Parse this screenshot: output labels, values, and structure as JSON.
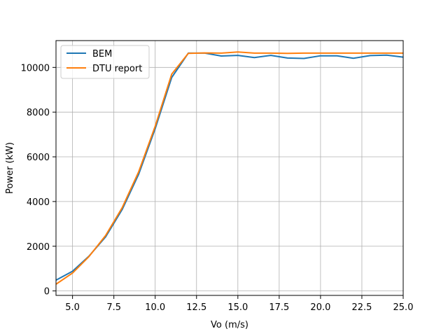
{
  "chart_data": {
    "type": "line",
    "title": "",
    "xlabel": "Vo (m/s)",
    "ylabel": "Power (kW)",
    "xlim": [
      4,
      25
    ],
    "ylim": [
      -200,
      11200
    ],
    "grid": true,
    "legend_position": "top-left",
    "x_ticks": [
      5.0,
      7.5,
      10.0,
      12.5,
      15.0,
      17.5,
      20.0,
      22.5,
      25.0
    ],
    "x_tick_labels": [
      "5.0",
      "7.5",
      "10.0",
      "12.5",
      "15.0",
      "17.5",
      "20.0",
      "22.5",
      "25.0"
    ],
    "y_ticks": [
      0,
      2000,
      4000,
      6000,
      8000,
      10000
    ],
    "y_tick_labels": [
      "0",
      "2000",
      "4000",
      "6000",
      "8000",
      "10000"
    ],
    "x": [
      4,
      5,
      6,
      7,
      8,
      9,
      10,
      11,
      12,
      13,
      14,
      15,
      16,
      17,
      18,
      19,
      20,
      21,
      22,
      23,
      24,
      25
    ],
    "series": [
      {
        "name": "BEM",
        "color": "#1f77b4",
        "values": [
          480,
          880,
          1560,
          2420,
          3640,
          5220,
          7260,
          9550,
          10640,
          10640,
          10510,
          10540,
          10440,
          10540,
          10420,
          10400,
          10520,
          10520,
          10410,
          10530,
          10550,
          10460
        ]
      },
      {
        "name": "DTU report",
        "color": "#ff7f0e",
        "values": [
          300,
          800,
          1540,
          2480,
          3720,
          5330,
          7370,
          9700,
          10630,
          10650,
          10640,
          10690,
          10640,
          10640,
          10630,
          10640,
          10640,
          10640,
          10640,
          10640,
          10640,
          10640
        ]
      }
    ]
  }
}
